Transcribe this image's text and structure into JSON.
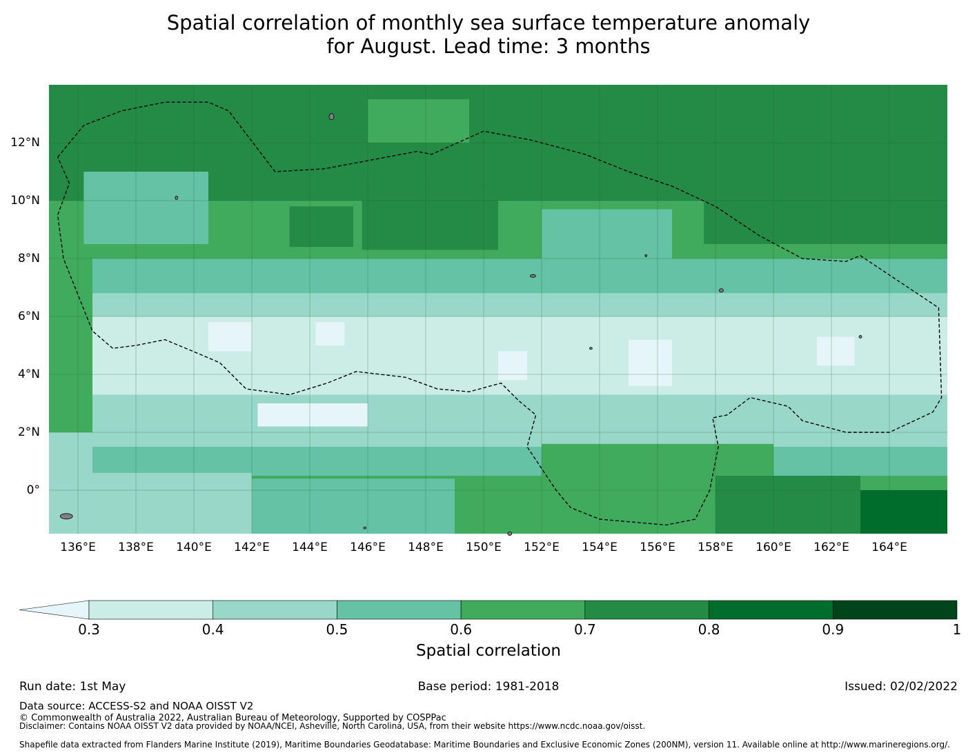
{
  "title_line1": "Spatial correlation of monthly sea surface temperature anomaly",
  "title_line2": "for August. Lead time: 3 months",
  "map": {
    "lon_range": [
      135.0,
      166.0
    ],
    "lat_range": [
      -1.5,
      14.0
    ],
    "lon_ticks": [
      {
        "value": 136,
        "label": "136°E"
      },
      {
        "value": 138,
        "label": "138°E"
      },
      {
        "value": 140,
        "label": "140°E"
      },
      {
        "value": 142,
        "label": "142°E"
      },
      {
        "value": 144,
        "label": "144°E"
      },
      {
        "value": 146,
        "label": "146°E"
      },
      {
        "value": 148,
        "label": "148°E"
      },
      {
        "value": 150,
        "label": "150°E"
      },
      {
        "value": 152,
        "label": "152°E"
      },
      {
        "value": 154,
        "label": "154°E"
      },
      {
        "value": 156,
        "label": "156°E"
      },
      {
        "value": 158,
        "label": "158°E"
      },
      {
        "value": 160,
        "label": "160°E"
      },
      {
        "value": 162,
        "label": "162°E"
      },
      {
        "value": 164,
        "label": "164°E"
      }
    ],
    "lat_ticks": [
      {
        "value": 12,
        "label": "12°N"
      },
      {
        "value": 10,
        "label": "10°N"
      },
      {
        "value": 8,
        "label": "8°N"
      },
      {
        "value": 6,
        "label": "6°N"
      },
      {
        "value": 4,
        "label": "4°N"
      },
      {
        "value": 2,
        "label": "2°N"
      },
      {
        "value": 0,
        "label": "0°"
      }
    ],
    "correlation_zones": [
      {
        "range": "0.7-0.8",
        "color": "#238b45",
        "lat_top": 14.0,
        "lat_bottom": 10.0
      },
      {
        "range": "0.6-0.7",
        "color": "#41ab5d",
        "lat_top": 10.0,
        "lat_bottom": 8.0
      },
      {
        "range": "0.5-0.6",
        "color": "#66c2a4",
        "lat_top": 8.0,
        "lat_bottom": 6.8
      },
      {
        "range": "0.4-0.5",
        "color": "#99d8c9",
        "lat_top": 6.8,
        "lat_bottom": 6.0
      },
      {
        "range": "0.3-0.4",
        "color": "#ccece6",
        "lat_top": 6.0,
        "lat_bottom": 3.3
      },
      {
        "range": "0.4-0.5",
        "color": "#99d8c9",
        "lat_top": 3.3,
        "lat_bottom": 1.5
      },
      {
        "range": "0.5-0.6",
        "color": "#66c2a4",
        "lat_top": 1.5,
        "lat_bottom": 0.5
      },
      {
        "range": "0.6-0.7",
        "color": "#41ab5d",
        "lat_top": 0.5,
        "lat_bottom": -1.5
      }
    ],
    "eez_boundary": [
      [
        135.3,
        11.5
      ],
      [
        136.2,
        12.6
      ],
      [
        137.5,
        13.1
      ],
      [
        139.0,
        13.4
      ],
      [
        140.5,
        13.4
      ],
      [
        141.2,
        13.1
      ],
      [
        142.8,
        11.0
      ],
      [
        144.5,
        11.1
      ],
      [
        147.7,
        11.7
      ],
      [
        148.2,
        11.6
      ],
      [
        150.0,
        12.4
      ],
      [
        151.6,
        12.1
      ],
      [
        153.5,
        11.6
      ],
      [
        155.0,
        11.0
      ],
      [
        156.5,
        10.5
      ],
      [
        158.0,
        9.8
      ],
      [
        159.5,
        8.8
      ],
      [
        161.0,
        8.0
      ],
      [
        162.5,
        7.9
      ],
      [
        163.0,
        8.1
      ],
      [
        165.7,
        6.3
      ],
      [
        165.8,
        3.2
      ],
      [
        165.5,
        2.7
      ],
      [
        164.0,
        2.0
      ],
      [
        162.5,
        2.0
      ],
      [
        161.0,
        2.4
      ],
      [
        160.5,
        2.9
      ],
      [
        159.2,
        3.2
      ],
      [
        158.4,
        2.6
      ],
      [
        157.9,
        2.5
      ],
      [
        158.1,
        1.5
      ],
      [
        157.8,
        0.0
      ],
      [
        157.3,
        -1.0
      ],
      [
        156.3,
        -1.2
      ],
      [
        154.0,
        -1.0
      ],
      [
        153.0,
        -0.6
      ],
      [
        152.5,
        0.0
      ],
      [
        151.5,
        1.5
      ],
      [
        151.8,
        2.6
      ],
      [
        151.2,
        3.1
      ],
      [
        150.6,
        3.7
      ],
      [
        149.5,
        3.4
      ],
      [
        148.4,
        3.5
      ],
      [
        147.3,
        3.9
      ],
      [
        145.6,
        4.1
      ],
      [
        144.6,
        3.7
      ],
      [
        143.3,
        3.3
      ],
      [
        141.8,
        3.5
      ],
      [
        140.9,
        4.4
      ],
      [
        140.2,
        4.7
      ],
      [
        139.0,
        5.2
      ],
      [
        138.0,
        5.0
      ],
      [
        137.2,
        4.9
      ],
      [
        136.5,
        5.5
      ],
      [
        135.5,
        8.0
      ],
      [
        135.3,
        9.5
      ],
      [
        135.7,
        10.6
      ],
      [
        135.3,
        11.5
      ]
    ]
  },
  "colorbar": {
    "bins": [
      {
        "lo": 0.3,
        "hi": 0.4,
        "color": "#ccece6"
      },
      {
        "lo": 0.4,
        "hi": 0.5,
        "color": "#99d8c9"
      },
      {
        "lo": 0.5,
        "hi": 0.6,
        "color": "#66c2a4"
      },
      {
        "lo": 0.6,
        "hi": 0.7,
        "color": "#41ab5d"
      },
      {
        "lo": 0.7,
        "hi": 0.8,
        "color": "#238b45"
      },
      {
        "lo": 0.8,
        "hi": 0.9,
        "color": "#006d2c"
      },
      {
        "lo": 0.9,
        "hi": 1.0,
        "color": "#00441b"
      }
    ],
    "under_color": "#e5f5f9",
    "ticks": [
      "0.3",
      "0.4",
      "0.5",
      "0.6",
      "0.7",
      "0.8",
      "0.9",
      "1"
    ],
    "label": "Spatial correlation"
  },
  "footer": {
    "run_date": "Run date: 1st May",
    "base_period": "Base period: 1981-2018",
    "issued": "Issued: 02/02/2022",
    "data_source": "Data source: ACCESS-S2 and NOAA OISST V2",
    "copyright": "© Commonwealth of Australia 2022, Australian Bureau of Meteorology, Supported by COSPPac",
    "disclaimer": "Disclaimer: Contains NOAA OISST V2 data provided by NOAA/NCEI, Asheville, North Carolina, USA, from their website https://www.ncdc.noaa.gov/oisst.",
    "shapefile": "Shapefile data extracted from Flanders Marine Institute (2019), Maritime Boundaries Geodatabase: Maritime Boundaries and Exclusive Economic Zones (200NM), version 11. Available online at http://www.marineregions.org/."
  }
}
